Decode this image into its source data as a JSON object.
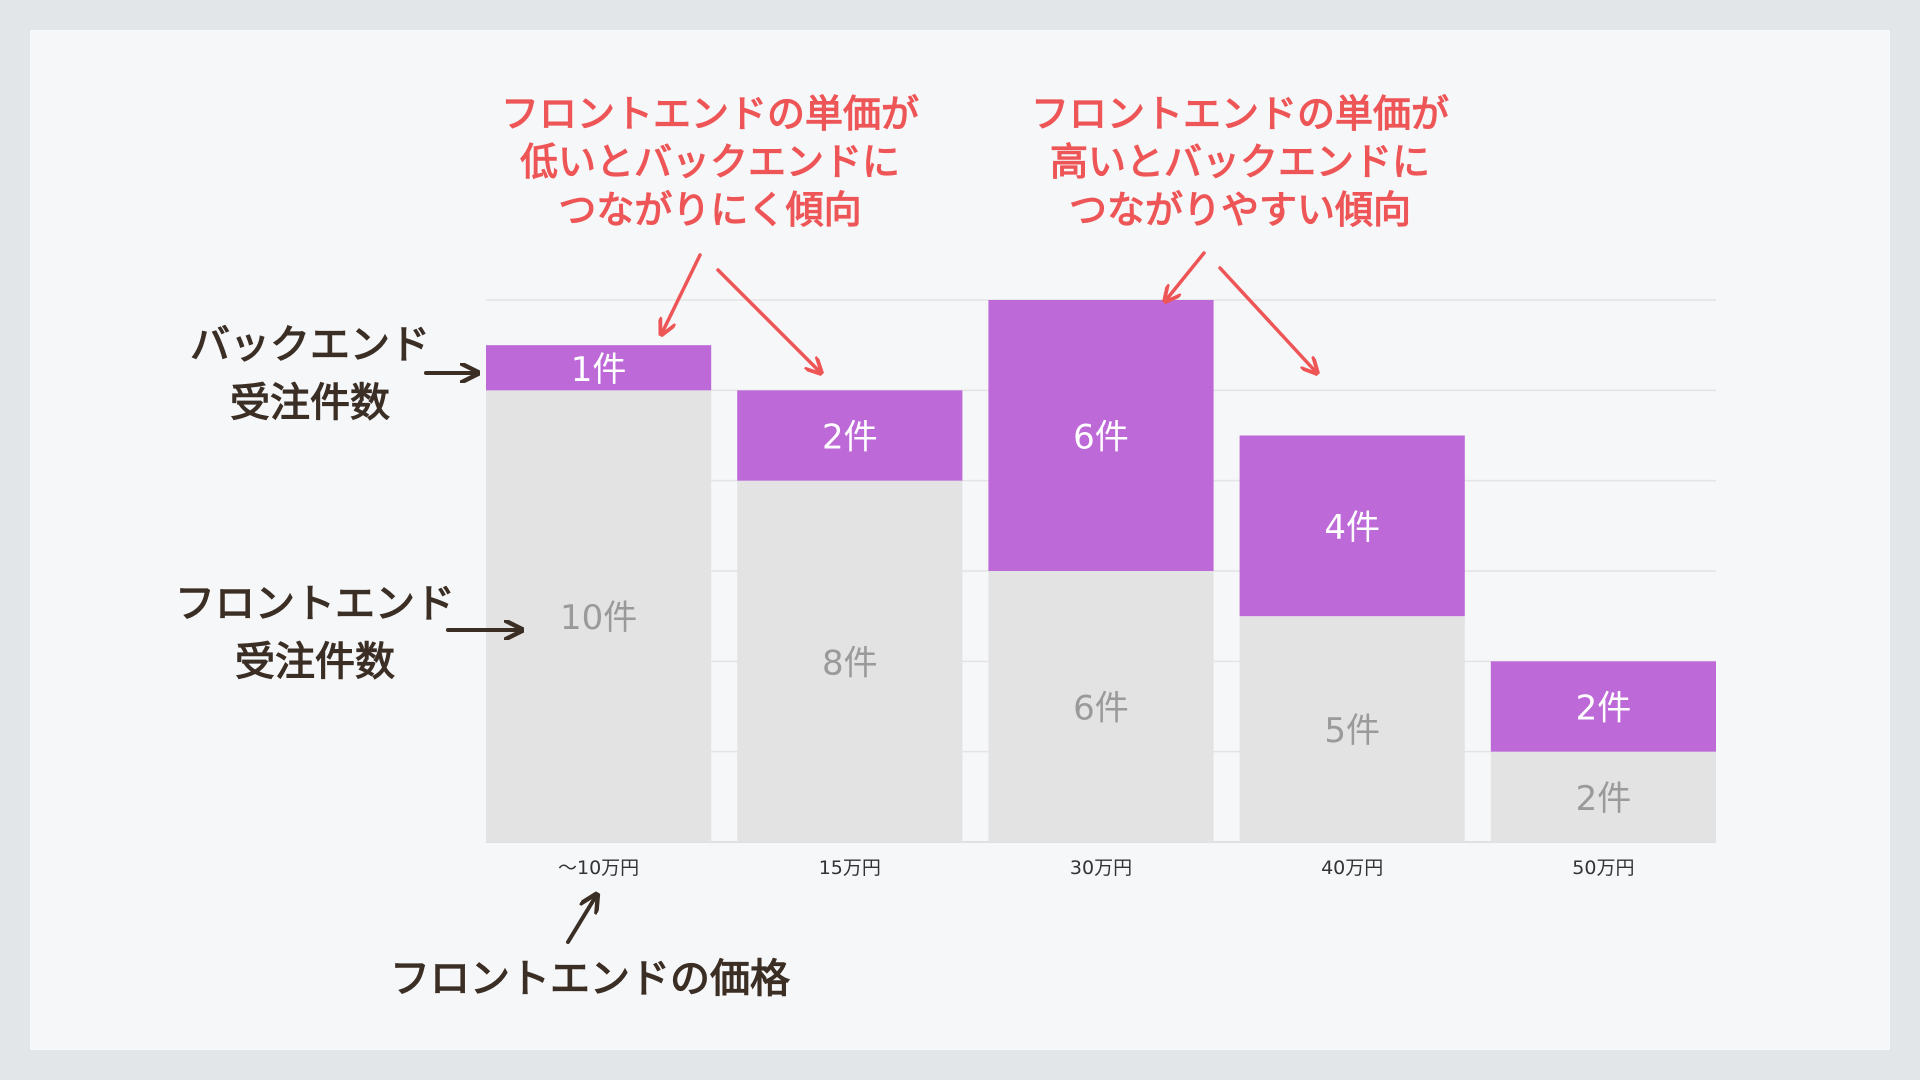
{
  "chart_data": {
    "type": "bar",
    "stacked": true,
    "categories": [
      "〜10万円",
      "15万円",
      "30万円",
      "40万円",
      "50万円"
    ],
    "series": [
      {
        "key": "frontend",
        "values": [
          10,
          8,
          6,
          5,
          2
        ],
        "labels": [
          "10件",
          "8件",
          "6件",
          "5件",
          "2件"
        ]
      },
      {
        "key": "backend",
        "values": [
          1,
          2,
          6,
          4,
          2
        ],
        "labels": [
          "1件",
          "2件",
          "6件",
          "4件",
          "2件"
        ]
      }
    ],
    "ylim": [
      0,
      12
    ],
    "grid": true,
    "colors": {
      "frontend": "#e3e3e3",
      "backend": "#bd6ad8",
      "frontend_label": "#9a9a9a",
      "backend_label": "#ffffff",
      "grid": "#e4e4e4",
      "annotation_red": "#ee5556",
      "annotation_dark": "#3a2e25"
    }
  },
  "annotations": {
    "low_price": [
      "フロントエンドの単価が",
      "低いとバックエンドに",
      "つながりにく傾向"
    ],
    "high_price": [
      "フロントエンドの単価が",
      "高いとバックエンドに",
      "つながりやすい傾向"
    ],
    "backend_count": [
      "バックエンド",
      "受注件数"
    ],
    "frontend_count": [
      "フロントエンド",
      "受注件数"
    ],
    "frontend_price": "フロントエンドの価格"
  }
}
